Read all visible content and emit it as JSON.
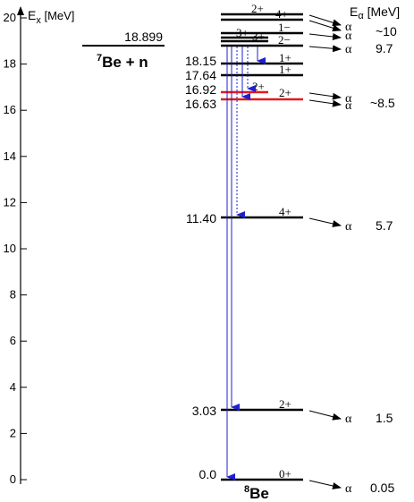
{
  "axis": {
    "label_main": "E",
    "label_sub": "x",
    "label_unit": " [MeV]",
    "ticks": [
      "0",
      "2",
      "4",
      "6",
      "8",
      "10",
      "12",
      "14",
      "16",
      "18",
      "20"
    ]
  },
  "threshold": {
    "energy": "18.899",
    "label_main": "Be + n",
    "label_super": "7"
  },
  "nucleus": {
    "label_main": "Be",
    "label_super": "8"
  },
  "alpha_header": {
    "symbol": "E",
    "sub": "α",
    "unit": " [MeV]"
  },
  "alpha_symbol": "α",
  "energy_labels": {
    "e1815": "18.15",
    "e1764": "17.64",
    "e1692": "16.92",
    "e1663": "16.63",
    "e1140": "11.40",
    "e303": "3.03",
    "e00": "0.0"
  },
  "spin_labels": {
    "top_2p": "2+",
    "top_4p": "4+",
    "m1": "1−",
    "p3a": "3+",
    "p3b": "3+",
    "m2": "2−",
    "p1a": "1+",
    "p1b": "1+",
    "p2a": "2+",
    "p2b": "2+",
    "p4": "4+",
    "g2": "2+",
    "g0": "0+"
  },
  "alpha_energies": {
    "a10": "~10",
    "a97": "9.7",
    "a85": "~8.5",
    "a57": "5.7",
    "a15": "1.5",
    "a005": "0.05"
  },
  "colors": {
    "levels": "#000000",
    "highlight_levels": "#e31a1c",
    "gamma": "#1f1fcf"
  }
}
